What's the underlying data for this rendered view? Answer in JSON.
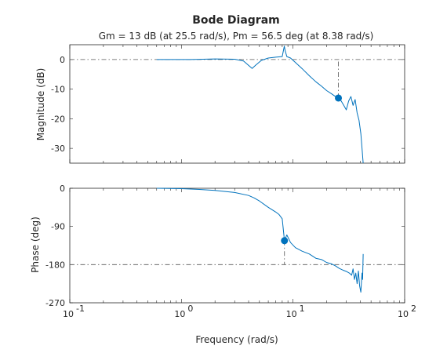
{
  "chart_data": [
    {
      "type": "line",
      "title": "Bode Diagram",
      "subtitle": "Gm = 13 dB (at 25.5 rad/s),  Pm = 56.5 deg (at 8.38 rad/s)",
      "ylabel": "Magnitude (dB)",
      "xlabel": "",
      "xscale": "log",
      "xlim": [
        0.1,
        100
      ],
      "ylim": [
        -35,
        5
      ],
      "y_ticks": [
        0,
        -10,
        -20,
        -30
      ],
      "reference_line": {
        "y": 0,
        "style": "dash-dot"
      },
      "gain_margin_marker": {
        "x": 25.5,
        "y": -13,
        "vertical_to": 0
      },
      "x": [
        0.6,
        1.2,
        2.0,
        3.0,
        3.6,
        4.0,
        4.3,
        4.6,
        5.2,
        6.0,
        7.0,
        8.0,
        8.35,
        8.5,
        8.8,
        9.5,
        10.5,
        12.0,
        14.0,
        16.0,
        18.0,
        20.0,
        22.0,
        24.0,
        25.5,
        27.0,
        28.5,
        30.0,
        31.5,
        33.0,
        34.5,
        36.0,
        37.5,
        39.0,
        40.5,
        41.5,
        42.5
      ],
      "values": [
        0,
        0,
        0.2,
        0.1,
        -0.5,
        -2,
        -3,
        -2,
        -0.3,
        0.5,
        0.8,
        1,
        4.5,
        3,
        1,
        0.5,
        -1,
        -3,
        -5.5,
        -7.5,
        -9,
        -10.5,
        -11.5,
        -12.5,
        -13,
        -14,
        -15.5,
        -17,
        -14,
        -12.5,
        -15.5,
        -13.5,
        -18,
        -20.5,
        -25,
        -30,
        -35
      ]
    },
    {
      "type": "line",
      "ylabel": "Phase (deg)",
      "xlabel": "Frequency (rad/s)",
      "xscale": "log",
      "xlim": [
        0.1,
        100
      ],
      "ylim": [
        -270,
        0
      ],
      "y_ticks": [
        0,
        -90,
        -180,
        -270
      ],
      "x_tick_labels": [
        "10",
        "10",
        "10",
        "10"
      ],
      "x_tick_exponents": [
        "-1",
        "0",
        "1",
        "2"
      ],
      "reference_line": {
        "y": -180,
        "style": "dash-dot"
      },
      "phase_margin_marker": {
        "x": 8.38,
        "y": -123.5,
        "vertical_to": -180
      },
      "x": [
        0.6,
        1.0,
        1.5,
        2.0,
        3.0,
        4.0,
        4.5,
        5.0,
        6.0,
        7.0,
        7.5,
        8.0,
        8.38,
        8.8,
        9.5,
        10.5,
        12.0,
        14.0,
        16.0,
        18.0,
        20.0,
        22.0,
        24.0,
        26.0,
        28.0,
        30.0,
        32.0,
        33.5,
        34.5,
        35.5,
        36.5,
        37.5,
        38.5,
        39.5,
        40.5,
        41.5,
        42.0,
        42.5
      ],
      "values": [
        0,
        -1,
        -3,
        -5,
        -10,
        -17,
        -23,
        -30,
        -45,
        -56,
        -62,
        -72,
        -123.5,
        -110,
        -128,
        -140,
        -148,
        -155,
        -165,
        -168,
        -175,
        -178,
        -183,
        -189,
        -193,
        -196,
        -200,
        -205,
        -190,
        -215,
        -200,
        -225,
        -195,
        -230,
        -245,
        -200,
        -215,
        -155
      ]
    }
  ]
}
